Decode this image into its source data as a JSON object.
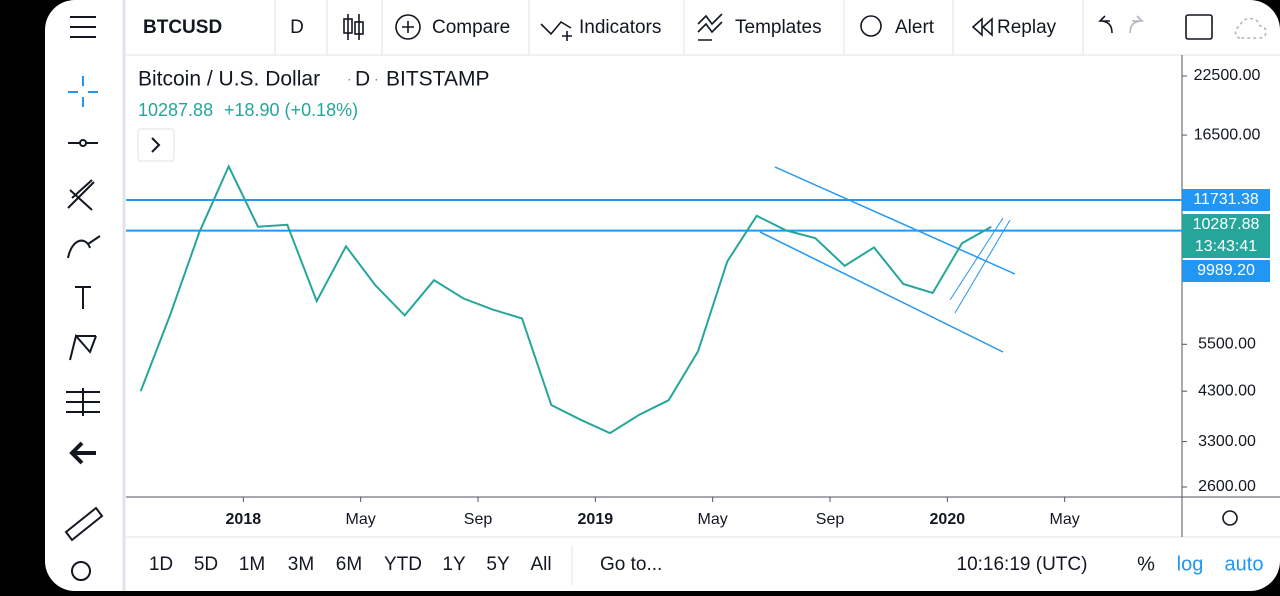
{
  "toolbar": {
    "symbol": "BTCUSD",
    "interval": "D",
    "buttons": [
      "Compare",
      "Indicators",
      "Templates",
      "Alert",
      "Replay"
    ]
  },
  "chart_data": {
    "type": "line",
    "title": "Bitcoin / U.S. Dollar",
    "interval": "D",
    "exchange": "BITSTAMP",
    "last_price": 10287.88,
    "change": "+18.90 (+0.18%)",
    "x": [
      "2017-09",
      "2017-10",
      "2017-11",
      "2017-12",
      "2018-01",
      "2018-02",
      "2018-03",
      "2018-04",
      "2018-05",
      "2018-06",
      "2018-07",
      "2018-08",
      "2018-09",
      "2018-10",
      "2018-11",
      "2018-12",
      "2019-01",
      "2019-02",
      "2019-03",
      "2019-04",
      "2019-05",
      "2019-06",
      "2019-07",
      "2019-08",
      "2019-09",
      "2019-10",
      "2019-11",
      "2019-12",
      "2020-01",
      "2020-02"
    ],
    "values": [
      4300,
      6400,
      9900,
      14000,
      10200,
      10300,
      6900,
      9200,
      7500,
      6400,
      7700,
      7000,
      6600,
      6300,
      4000,
      3700,
      3450,
      3800,
      4100,
      5300,
      8500,
      10800,
      10000,
      9600,
      8300,
      9150,
      7550,
      7200,
      9350,
      10200
    ],
    "color": "#26a69a",
    "log_scale": true,
    "xlim": [
      "2017-09",
      "2020-09"
    ],
    "xticks": [
      {
        "value": "2018-01",
        "label": "2018"
      },
      {
        "value": "2018-05",
        "label": "May"
      },
      {
        "value": "2018-09",
        "label": "Sep"
      },
      {
        "value": "2019-01",
        "label": "2019"
      },
      {
        "value": "2019-05",
        "label": "May"
      },
      {
        "value": "2019-09",
        "label": "Sep"
      },
      {
        "value": "2020-01",
        "label": "2020"
      },
      {
        "value": "2020-05",
        "label": "May"
      }
    ],
    "ylim": [
      2467,
      24470
    ],
    "yticks": [
      {
        "value": 22500,
        "label": "22500.00"
      },
      {
        "value": 16500,
        "label": "16500.00"
      },
      {
        "value": 5500,
        "label": "5500.00"
      },
      {
        "value": 4300,
        "label": "4300.00"
      },
      {
        "value": 3300,
        "label": "3300.00"
      },
      {
        "value": 2600,
        "label": "2600.00"
      }
    ],
    "horizontal_lines": [
      11731.38,
      9989.2
    ],
    "line_color": "#2196f3",
    "price_labels": [
      {
        "value": 11731.38,
        "label": "11731.38",
        "color": "#2196f3"
      },
      {
        "value": 10287.88,
        "label": "10287.88",
        "color": "#26a69a"
      },
      {
        "value": 9989.2,
        "label": "9989.20",
        "color": "#2196f3"
      }
    ],
    "countdown": "13:43:41"
  },
  "bottom_bar": {
    "ranges": [
      "1D",
      "5D",
      "1M",
      "3M",
      "6M",
      "YTD",
      "1Y",
      "5Y",
      "All"
    ],
    "goto": "Go to...",
    "time": "10:16:19 (UTC)",
    "percent": "%",
    "log": "log",
    "auto": "auto"
  }
}
